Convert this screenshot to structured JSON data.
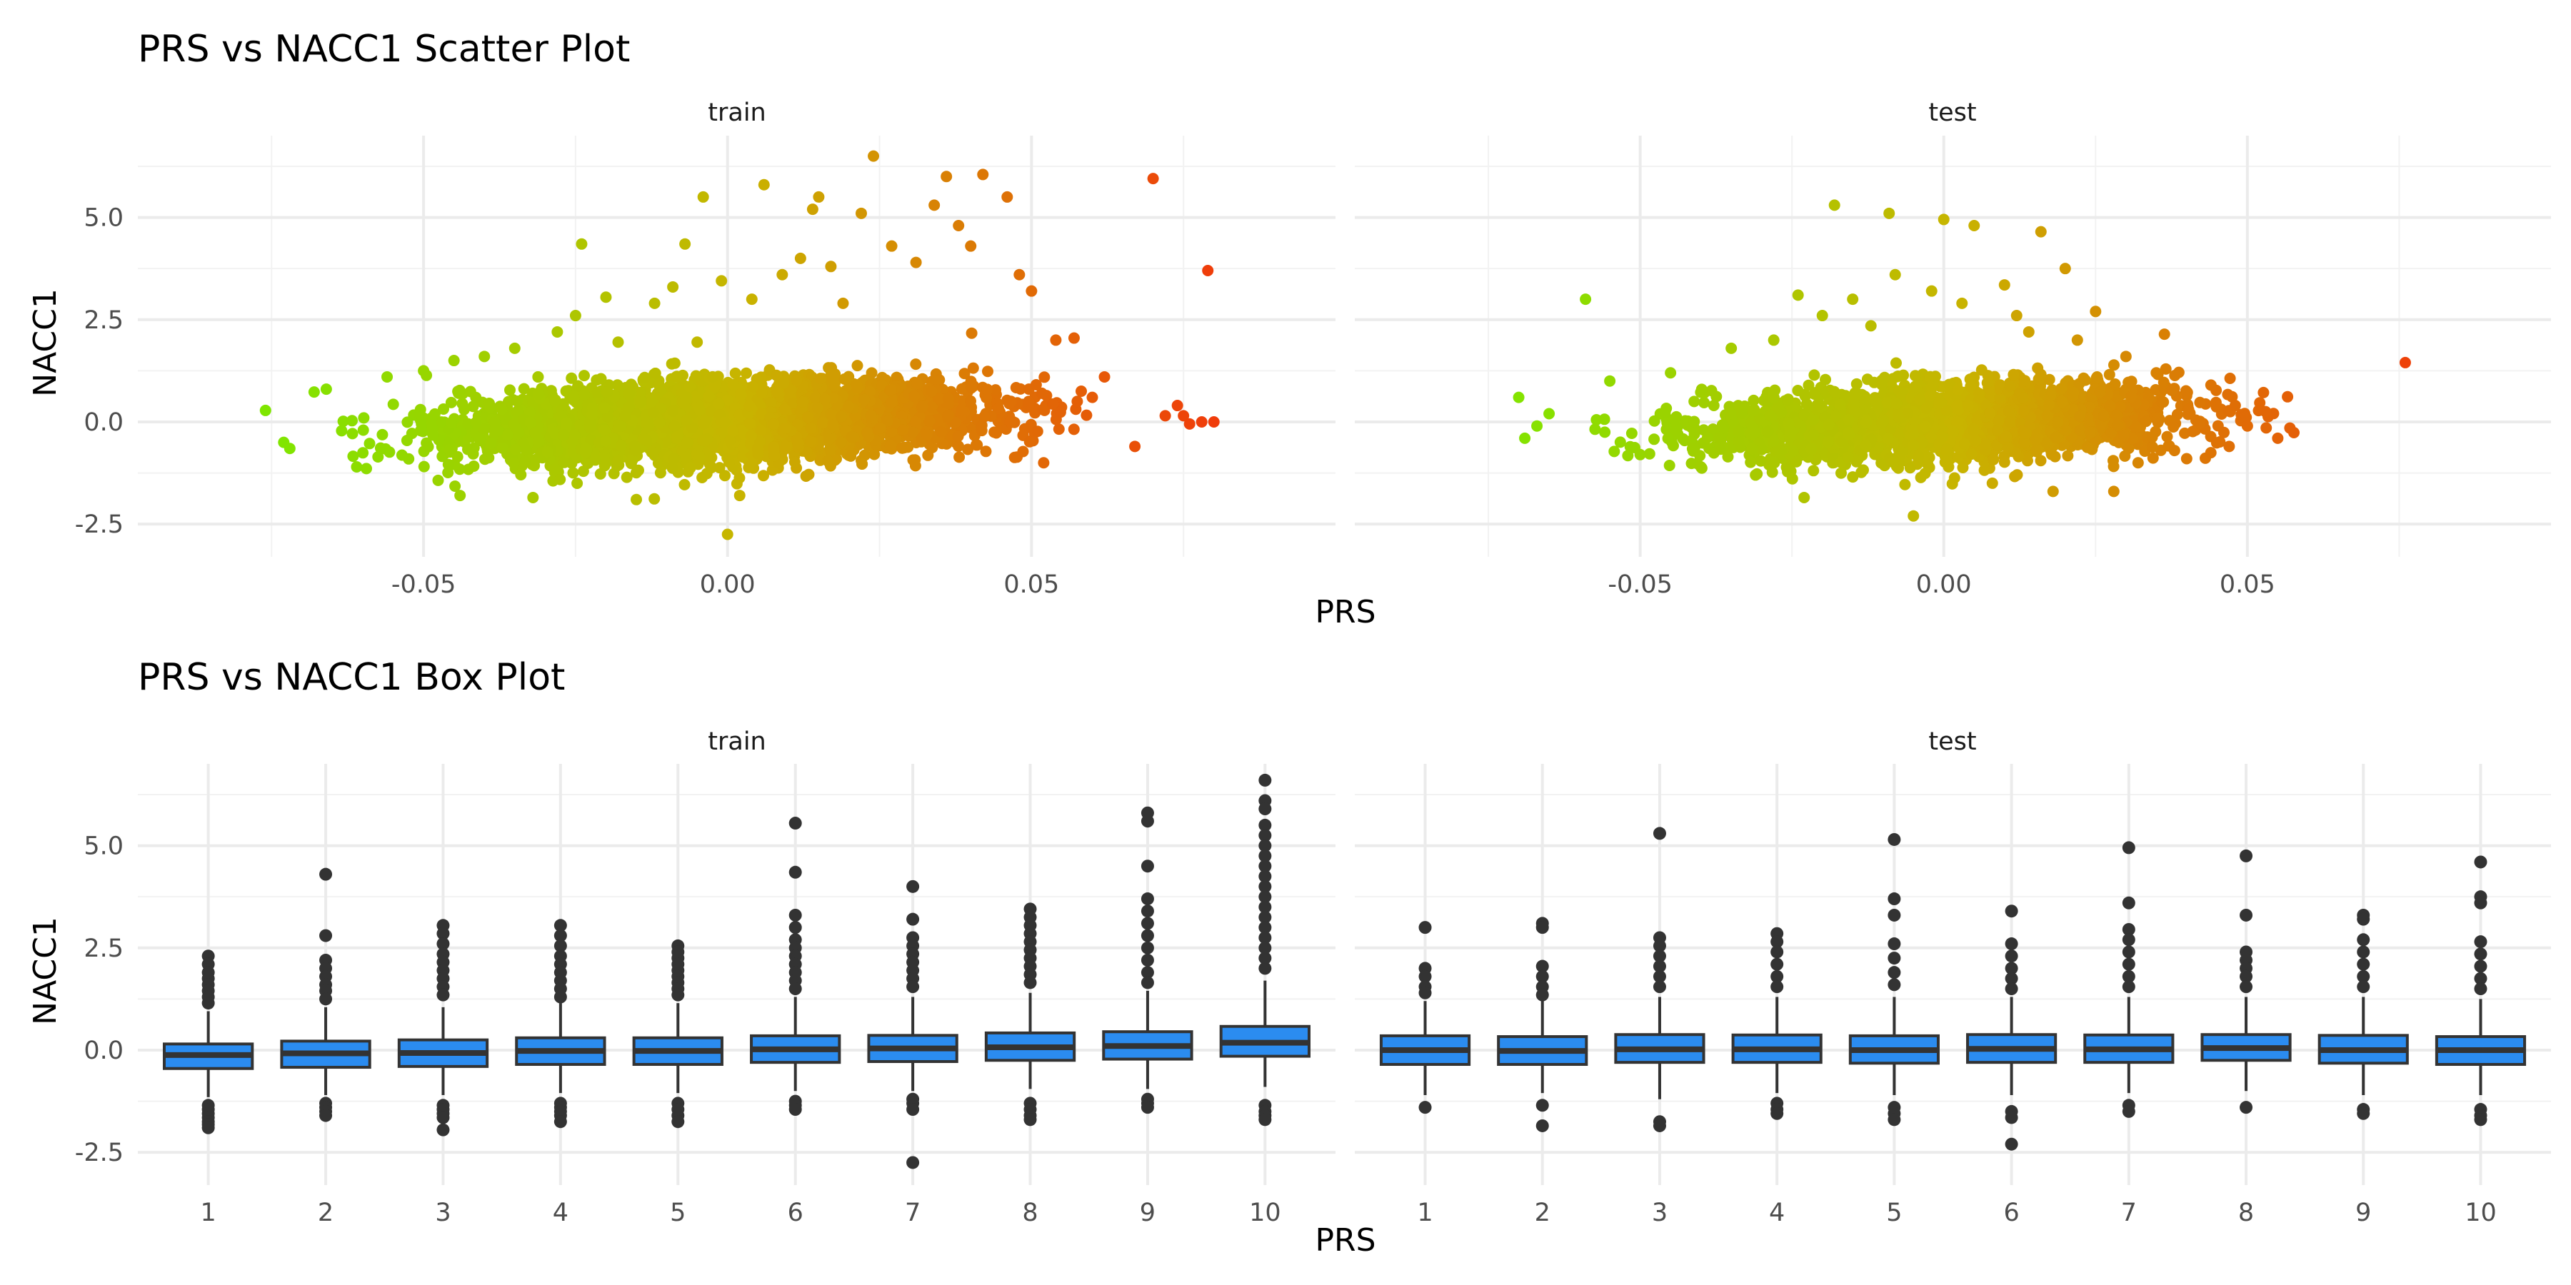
{
  "chart_data": [
    {
      "type": "scatter",
      "title": "PRS vs NACC1 Scatter Plot",
      "xlabel": "PRS",
      "ylabel": "NACC1",
      "facets": [
        "train",
        "test"
      ],
      "xlim": [
        -0.097,
        0.1
      ],
      "ylim": [
        -3.3,
        7.0
      ],
      "x_ticks": [
        -0.05,
        0.0,
        0.05
      ],
      "x_tick_labels": [
        "-0.05",
        "0.00",
        "0.05"
      ],
      "y_ticks": [
        -2.5,
        0.0,
        2.5,
        5.0
      ],
      "y_tick_labels": [
        "-2.5",
        "0.0",
        "2.5",
        "5.0"
      ],
      "grid": true,
      "color_scale": {
        "low": "#7fe600",
        "mid": "#c8b400",
        "high": "#f03c0a",
        "mapped_to": "PRS"
      },
      "series": [
        {
          "facet": "train",
          "points": [
            [
              -0.076,
              0.28
            ],
            [
              -0.073,
              -0.5
            ],
            [
              -0.072,
              -0.65
            ],
            [
              -0.068,
              0.73
            ],
            [
              -0.066,
              0.8
            ],
            [
              -0.061,
              -1.1
            ],
            [
              -0.056,
              1.1
            ],
            [
              -0.05,
              1.25
            ],
            [
              -0.045,
              1.5
            ],
            [
              -0.044,
              -1.8
            ],
            [
              -0.04,
              1.6
            ],
            [
              -0.035,
              1.8
            ],
            [
              -0.032,
              -1.85
            ],
            [
              -0.028,
              2.2
            ],
            [
              -0.025,
              2.6
            ],
            [
              -0.024,
              4.35
            ],
            [
              -0.02,
              3.05
            ],
            [
              -0.018,
              1.95
            ],
            [
              -0.015,
              -1.9
            ],
            [
              -0.012,
              2.9
            ],
            [
              -0.009,
              3.3
            ],
            [
              -0.007,
              4.35
            ],
            [
              -0.005,
              1.95
            ],
            [
              -0.004,
              5.5
            ],
            [
              -0.001,
              3.45
            ],
            [
              0.0,
              -2.75
            ],
            [
              0.002,
              -1.8
            ],
            [
              0.004,
              3.0
            ],
            [
              0.006,
              5.8
            ],
            [
              0.009,
              3.6
            ],
            [
              0.012,
              4.0
            ],
            [
              0.014,
              5.2
            ],
            [
              0.015,
              5.5
            ],
            [
              0.017,
              3.8
            ],
            [
              0.019,
              2.9
            ],
            [
              0.022,
              5.1
            ],
            [
              0.024,
              6.5
            ],
            [
              0.027,
              4.3
            ],
            [
              0.031,
              3.9
            ],
            [
              0.034,
              5.3
            ],
            [
              0.036,
              6.0
            ],
            [
              0.038,
              4.8
            ],
            [
              0.04,
              4.3
            ],
            [
              0.042,
              6.05
            ],
            [
              0.046,
              5.5
            ],
            [
              0.048,
              3.6
            ],
            [
              0.05,
              3.2
            ],
            [
              0.052,
              -1.0
            ],
            [
              0.054,
              2.0
            ],
            [
              0.057,
              2.05
            ],
            [
              0.06,
              0.6
            ],
            [
              0.062,
              1.1
            ],
            [
              0.067,
              -0.6
            ],
            [
              0.07,
              5.95
            ],
            [
              0.072,
              0.15
            ],
            [
              0.074,
              0.4
            ],
            [
              0.075,
              0.15
            ],
            [
              0.076,
              -0.05
            ],
            [
              0.078,
              0.0
            ],
            [
              0.079,
              3.7
            ],
            [
              0.08,
              0.0
            ]
          ]
        },
        {
          "facet": "test",
          "points": [
            [
              -0.07,
              0.6
            ],
            [
              -0.069,
              -0.4
            ],
            [
              -0.067,
              -0.1
            ],
            [
              -0.065,
              0.2
            ],
            [
              -0.059,
              3.0
            ],
            [
              -0.055,
              1.0
            ],
            [
              -0.05,
              -0.8
            ],
            [
              -0.045,
              1.2
            ],
            [
              -0.04,
              -1.1
            ],
            [
              -0.035,
              1.8
            ],
            [
              -0.031,
              -1.3
            ],
            [
              -0.028,
              2.0
            ],
            [
              -0.024,
              3.1
            ],
            [
              -0.023,
              -1.85
            ],
            [
              -0.02,
              2.6
            ],
            [
              -0.018,
              5.3
            ],
            [
              -0.015,
              3.0
            ],
            [
              -0.012,
              2.35
            ],
            [
              -0.009,
              5.1
            ],
            [
              -0.008,
              3.6
            ],
            [
              -0.005,
              -2.3
            ],
            [
              -0.002,
              3.2
            ],
            [
              0.0,
              4.95
            ],
            [
              0.003,
              2.9
            ],
            [
              0.005,
              4.8
            ],
            [
              0.008,
              -1.5
            ],
            [
              0.01,
              3.35
            ],
            [
              0.012,
              2.6
            ],
            [
              0.014,
              2.2
            ],
            [
              0.016,
              4.65
            ],
            [
              0.018,
              -1.7
            ],
            [
              0.02,
              3.75
            ],
            [
              0.022,
              2.0
            ],
            [
              0.025,
              2.7
            ],
            [
              0.028,
              -1.7
            ],
            [
              0.03,
              1.6
            ],
            [
              0.032,
              -1.0
            ],
            [
              0.035,
              1.2
            ],
            [
              0.038,
              -0.7
            ],
            [
              0.04,
              -0.9
            ],
            [
              0.044,
              0.9
            ],
            [
              0.047,
              -0.6
            ],
            [
              0.048,
              0.4
            ],
            [
              0.05,
              -0.1
            ],
            [
              0.053,
              0.25
            ],
            [
              0.055,
              -0.4
            ],
            [
              0.057,
              -0.15
            ],
            [
              0.076,
              1.45
            ]
          ]
        }
      ]
    },
    {
      "type": "box",
      "title": "PRS vs NACC1 Box Plot",
      "xlabel": "PRS",
      "ylabel": "NACC1",
      "facets": [
        "train",
        "test"
      ],
      "categories": [
        "1",
        "2",
        "3",
        "4",
        "5",
        "6",
        "7",
        "8",
        "9",
        "10"
      ],
      "ylim": [
        -3.3,
        7.0
      ],
      "y_ticks": [
        -2.5,
        0.0,
        2.5,
        5.0
      ],
      "y_tick_labels": [
        "-2.5",
        "0.0",
        "2.5",
        "5.0"
      ],
      "grid": true,
      "box_fill": "#2b8cf0",
      "series": [
        {
          "facet": "train",
          "boxes": [
            {
              "cat": "1",
              "min": -1.15,
              "q1": -0.45,
              "median": -0.12,
              "q3": 0.15,
              "max": 0.95,
              "outliers": [
                2.3,
                2.1,
                1.9,
                1.75,
                1.6,
                1.45,
                1.3,
                1.15,
                -1.35,
                -1.45,
                -1.55,
                -1.65,
                -1.75,
                -1.82,
                -1.9
              ]
            },
            {
              "cat": "2",
              "min": -1.1,
              "q1": -0.42,
              "median": -0.08,
              "q3": 0.22,
              "max": 1.05,
              "outliers": [
                4.3,
                2.8,
                2.2,
                2.0,
                1.8,
                1.6,
                1.45,
                1.25,
                -1.3,
                -1.4,
                -1.5,
                -1.6
              ]
            },
            {
              "cat": "3",
              "min": -1.1,
              "q1": -0.4,
              "median": -0.07,
              "q3": 0.25,
              "max": 1.05,
              "outliers": [
                3.05,
                2.85,
                2.6,
                2.35,
                2.15,
                1.95,
                1.75,
                1.55,
                1.35,
                -1.35,
                -1.45,
                -1.55,
                -1.65,
                -1.95
              ]
            },
            {
              "cat": "4",
              "min": -1.05,
              "q1": -0.35,
              "median": -0.02,
              "q3": 0.3,
              "max": 1.15,
              "outliers": [
                3.05,
                2.8,
                2.55,
                2.3,
                2.1,
                1.9,
                1.7,
                1.5,
                1.3,
                -1.3,
                -1.4,
                -1.5,
                -1.6,
                -1.75
              ]
            },
            {
              "cat": "5",
              "min": -1.05,
              "q1": -0.35,
              "median": -0.02,
              "q3": 0.3,
              "max": 1.15,
              "outliers": [
                2.55,
                2.4,
                2.25,
                2.1,
                1.95,
                1.8,
                1.65,
                1.5,
                1.35,
                -1.3,
                -1.45,
                -1.6,
                -1.75
              ]
            },
            {
              "cat": "6",
              "min": -1.0,
              "q1": -0.3,
              "median": 0.02,
              "q3": 0.35,
              "max": 1.3,
              "outliers": [
                5.55,
                4.35,
                3.3,
                3.0,
                2.7,
                2.5,
                2.3,
                2.1,
                1.9,
                1.7,
                1.5,
                -1.25,
                -1.35,
                -1.45
              ]
            },
            {
              "cat": "7",
              "min": -1.0,
              "q1": -0.28,
              "median": 0.04,
              "q3": 0.36,
              "max": 1.3,
              "outliers": [
                4.0,
                3.2,
                2.75,
                2.55,
                2.35,
                2.15,
                1.95,
                1.75,
                1.55,
                -1.2,
                -1.3,
                -1.45,
                -2.75
              ]
            },
            {
              "cat": "8",
              "min": -0.95,
              "q1": -0.25,
              "median": 0.07,
              "q3": 0.42,
              "max": 1.4,
              "outliers": [
                3.45,
                3.25,
                3.05,
                2.85,
                2.65,
                2.45,
                2.25,
                2.05,
                1.85,
                1.65,
                -1.3,
                -1.45,
                -1.6,
                -1.7
              ]
            },
            {
              "cat": "9",
              "min": -0.95,
              "q1": -0.22,
              "median": 0.1,
              "q3": 0.45,
              "max": 1.45,
              "outliers": [
                5.8,
                5.6,
                4.5,
                3.7,
                3.4,
                3.1,
                2.8,
                2.5,
                2.2,
                1.9,
                1.65,
                -1.2,
                -1.3,
                -1.4
              ]
            },
            {
              "cat": "10",
              "min": -0.9,
              "q1": -0.15,
              "median": 0.18,
              "q3": 0.58,
              "max": 1.7,
              "outliers": [
                6.6,
                6.1,
                5.9,
                5.5,
                5.25,
                5.0,
                4.75,
                4.5,
                4.25,
                4.0,
                3.75,
                3.5,
                3.25,
                3.0,
                2.75,
                2.5,
                2.25,
                2.0,
                -1.35,
                -1.5,
                -1.6,
                -1.7
              ]
            }
          ]
        },
        {
          "facet": "test",
          "boxes": [
            {
              "cat": "1",
              "min": -1.1,
              "q1": -0.35,
              "median": 0.0,
              "q3": 0.35,
              "max": 1.2,
              "outliers": [
                3.0,
                2.0,
                1.8,
                1.55,
                1.4,
                -1.4
              ]
            },
            {
              "cat": "2",
              "min": -1.05,
              "q1": -0.35,
              "median": -0.02,
              "q3": 0.33,
              "max": 1.2,
              "outliers": [
                3.1,
                3.0,
                2.05,
                1.8,
                1.55,
                1.35,
                -1.35,
                -1.85
              ]
            },
            {
              "cat": "3",
              "min": -1.2,
              "q1": -0.3,
              "median": 0.02,
              "q3": 0.38,
              "max": 1.3,
              "outliers": [
                5.3,
                2.75,
                2.55,
                2.3,
                2.05,
                1.8,
                1.55,
                -1.75,
                -1.85
              ]
            },
            {
              "cat": "4",
              "min": -1.05,
              "q1": -0.3,
              "median": 0.02,
              "q3": 0.37,
              "max": 1.3,
              "outliers": [
                2.85,
                2.65,
                2.4,
                2.1,
                1.8,
                1.55,
                -1.3,
                -1.45,
                -1.55
              ]
            },
            {
              "cat": "5",
              "min": -1.1,
              "q1": -0.32,
              "median": 0.0,
              "q3": 0.35,
              "max": 1.3,
              "outliers": [
                5.15,
                3.7,
                3.3,
                2.6,
                2.25,
                1.9,
                1.6,
                -1.4,
                -1.55,
                -1.7
              ]
            },
            {
              "cat": "6",
              "min": -1.1,
              "q1": -0.3,
              "median": 0.03,
              "q3": 0.38,
              "max": 1.3,
              "outliers": [
                3.4,
                2.6,
                2.3,
                2.0,
                1.75,
                1.5,
                -1.5,
                -1.65,
                -2.3
              ]
            },
            {
              "cat": "7",
              "min": -1.05,
              "q1": -0.3,
              "median": 0.02,
              "q3": 0.37,
              "max": 1.3,
              "outliers": [
                4.95,
                3.6,
                2.95,
                2.7,
                2.4,
                2.1,
                1.8,
                1.55,
                -1.35,
                -1.5
              ]
            },
            {
              "cat": "8",
              "min": -1.0,
              "q1": -0.25,
              "median": 0.05,
              "q3": 0.38,
              "max": 1.3,
              "outliers": [
                4.75,
                3.3,
                2.4,
                2.2,
                2.0,
                1.8,
                1.55,
                -1.4
              ]
            },
            {
              "cat": "9",
              "min": -1.1,
              "q1": -0.32,
              "median": 0.0,
              "q3": 0.36,
              "max": 1.3,
              "outliers": [
                3.3,
                3.2,
                2.7,
                2.4,
                2.1,
                1.8,
                1.55,
                -1.45,
                -1.55
              ]
            },
            {
              "cat": "10",
              "min": -1.1,
              "q1": -0.35,
              "median": 0.0,
              "q3": 0.33,
              "max": 1.25,
              "outliers": [
                4.6,
                3.75,
                3.6,
                2.65,
                2.35,
                2.05,
                1.75,
                1.5,
                -1.45,
                -1.6,
                -1.7
              ]
            }
          ]
        }
      ]
    }
  ]
}
